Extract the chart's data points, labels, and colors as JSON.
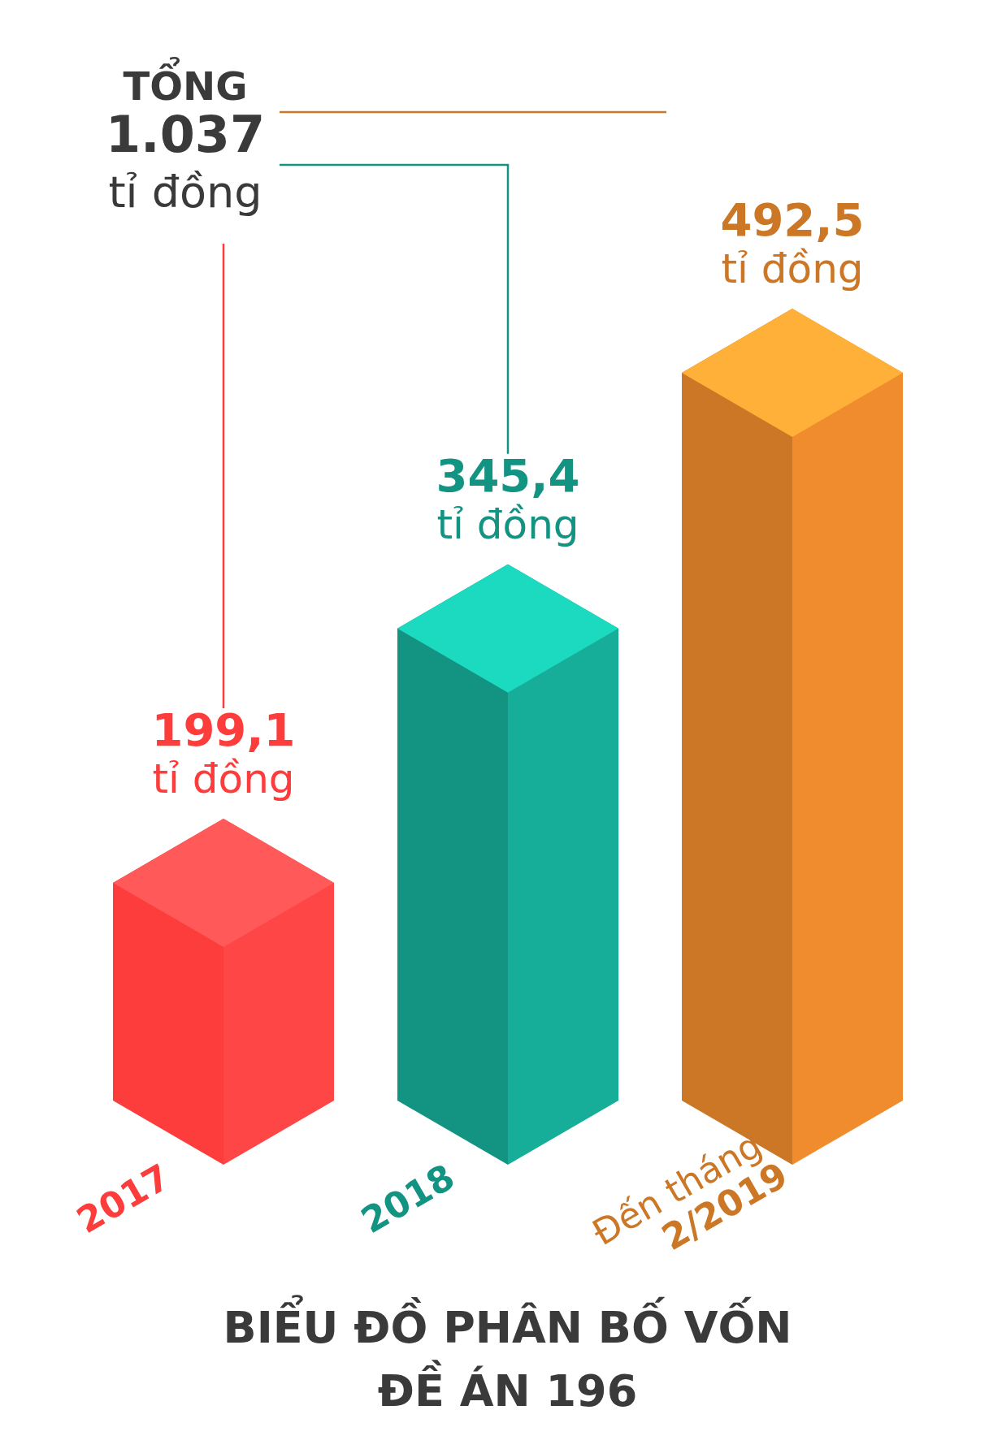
{
  "chart_data": {
    "type": "bar",
    "title": "BIỂU ĐỒ PHÂN BỐ VỐN\nĐỀ ÁN 196",
    "categories": [
      "2017",
      "2018",
      "Đến tháng\n2/2019"
    ],
    "values": [
      199.1,
      345.4,
      492.5
    ],
    "colors": [
      "#fd3c3c",
      "#139382",
      "#cc7726"
    ],
    "value_labels": [
      "199,1\ntỉ đồng",
      "345,4\ntỉ đồng",
      "492,5\ntỉ đồng"
    ],
    "annotations": [
      "TỔNG\n1.037\ntỉ đồng"
    ]
  }
}
